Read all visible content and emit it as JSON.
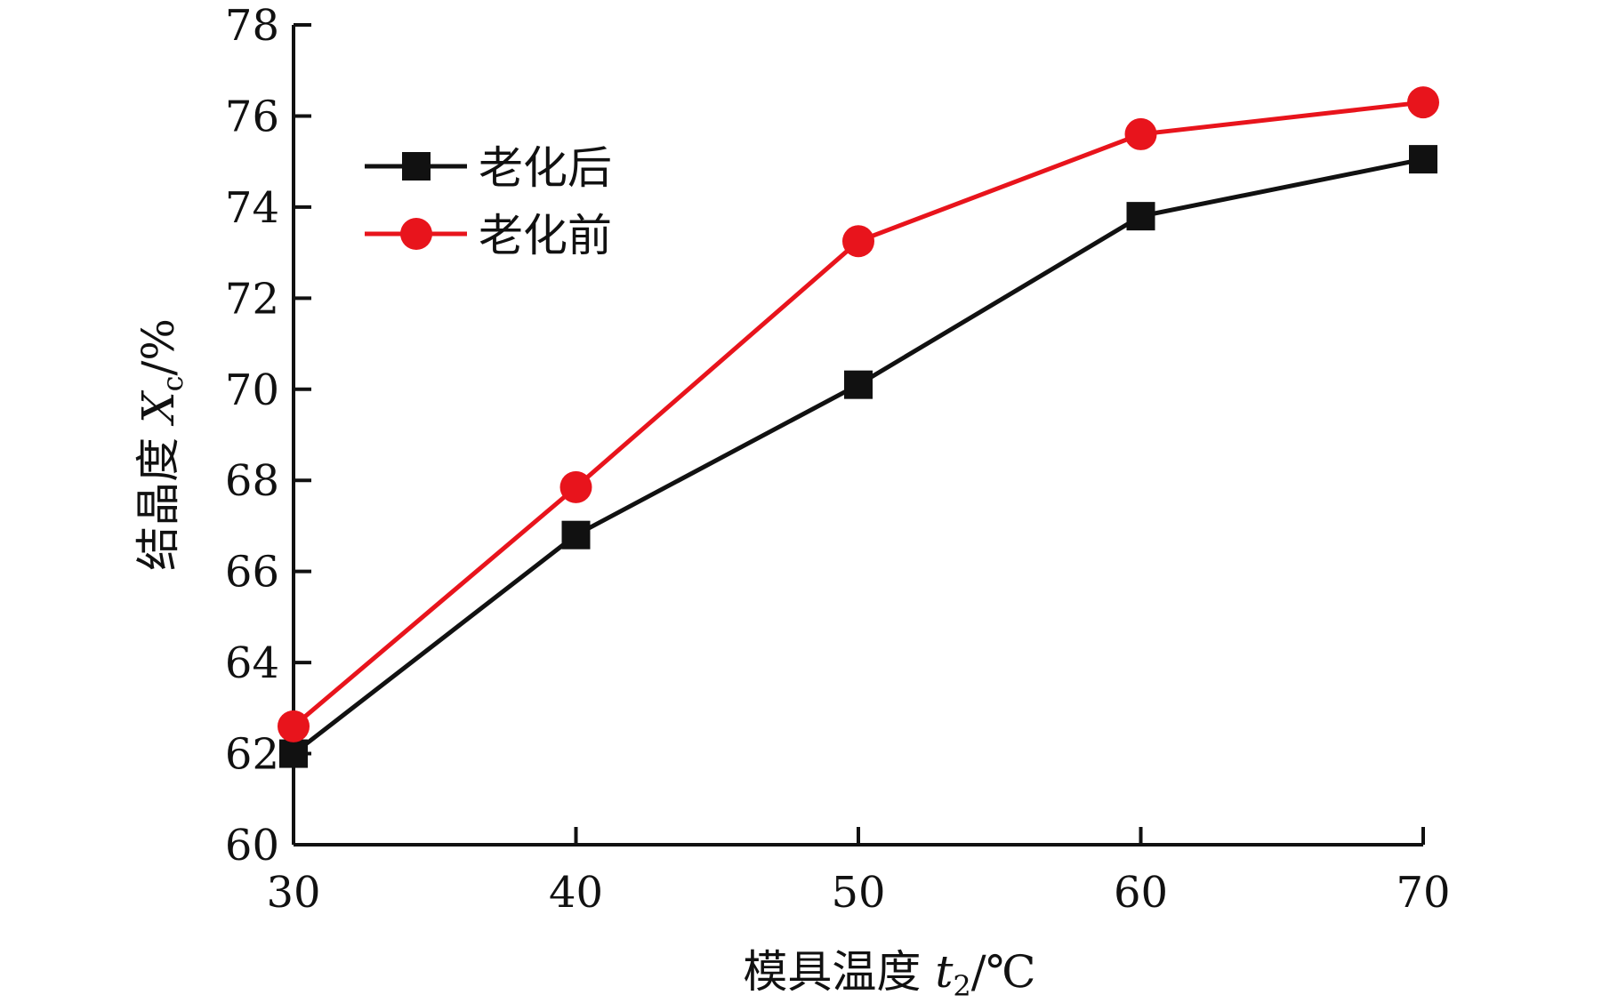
{
  "chart_data": {
    "type": "line",
    "x": [
      30,
      40,
      50,
      60,
      70
    ],
    "xlim": [
      30,
      70
    ],
    "ylim": [
      60,
      78
    ],
    "x_ticks": [
      "30",
      "40",
      "50",
      "60",
      "70"
    ],
    "y_ticks": [
      "60",
      "62",
      "64",
      "66",
      "68",
      "70",
      "72",
      "74",
      "76",
      "78"
    ],
    "xlabel": {
      "main": "模具温度 ",
      "var": "t",
      "sub": "2",
      "unit": "/℃"
    },
    "ylabel": {
      "main": "结晶度 ",
      "var": "X",
      "sub": "c",
      "unit": "/%"
    },
    "legend_position": "upper-left",
    "grid": false,
    "series": [
      {
        "name": "老化后",
        "values": [
          62.0,
          66.8,
          70.1,
          73.8,
          75.05
        ],
        "color": "#111111",
        "marker": "square"
      },
      {
        "name": "老化前",
        "values": [
          62.6,
          67.85,
          73.25,
          75.6,
          76.3
        ],
        "color": "#e8141c",
        "marker": "circle"
      }
    ]
  }
}
